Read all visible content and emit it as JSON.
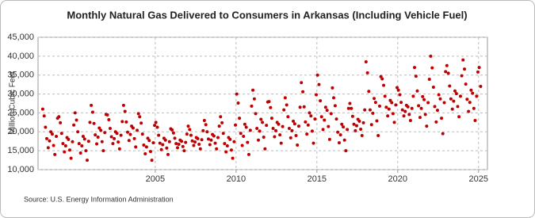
{
  "chart_data": {
    "type": "scatter",
    "title": "Monthly Natural Gas Delivered to Consumers in Arkansas (Including Vehicle Fuel)",
    "ylabel": "Million Cubic Feet",
    "source": "Source: U.S. Energy Information Administration",
    "color": "#c00000",
    "grid": true,
    "xlim": [
      1997.75,
      2025.55
    ],
    "xticks": [
      2005,
      2010,
      2015,
      2020,
      2025
    ],
    "ylim": [
      10000,
      45000
    ],
    "yticks": [
      {
        "value": 10000,
        "label": "10,000"
      },
      {
        "value": 15000,
        "label": "15,000"
      },
      {
        "value": 20000,
        "label": "20,000"
      },
      {
        "value": 25000,
        "label": "25,000"
      },
      {
        "value": 30000,
        "label": "30,000"
      },
      {
        "value": 35000,
        "label": "35,000"
      },
      {
        "value": 40000,
        "label": "40,000"
      },
      {
        "value": 45000,
        "label": "45,000"
      }
    ],
    "x": [
      1998.04,
      1998.13,
      1998.21,
      1998.29,
      1998.38,
      1998.46,
      1998.54,
      1998.63,
      1998.71,
      1998.79,
      1998.88,
      1998.96,
      1999.04,
      1999.13,
      1999.21,
      1999.29,
      1999.38,
      1999.46,
      1999.54,
      1999.63,
      1999.71,
      1999.79,
      1999.88,
      1999.96,
      2000.04,
      2000.13,
      2000.21,
      2000.29,
      2000.38,
      2000.46,
      2000.54,
      2000.63,
      2000.71,
      2000.79,
      2000.88,
      2000.96,
      2001.04,
      2001.13,
      2001.21,
      2001.29,
      2001.38,
      2001.46,
      2001.54,
      2001.63,
      2001.71,
      2001.79,
      2001.88,
      2001.96,
      2002.04,
      2002.13,
      2002.21,
      2002.29,
      2002.38,
      2002.46,
      2002.54,
      2002.63,
      2002.71,
      2002.79,
      2002.88,
      2002.96,
      2003.04,
      2003.13,
      2003.21,
      2003.29,
      2003.38,
      2003.46,
      2003.54,
      2003.63,
      2003.71,
      2003.79,
      2003.88,
      2003.96,
      2004.04,
      2004.13,
      2004.21,
      2004.29,
      2004.38,
      2004.46,
      2004.54,
      2004.63,
      2004.71,
      2004.79,
      2004.88,
      2004.96,
      2005.04,
      2005.13,
      2005.21,
      2005.29,
      2005.38,
      2005.46,
      2005.54,
      2005.63,
      2005.71,
      2005.79,
      2005.88,
      2005.96,
      2006.04,
      2006.13,
      2006.21,
      2006.29,
      2006.38,
      2006.46,
      2006.54,
      2006.63,
      2006.71,
      2006.79,
      2006.88,
      2006.96,
      2007.04,
      2007.13,
      2007.21,
      2007.29,
      2007.38,
      2007.46,
      2007.54,
      2007.63,
      2007.71,
      2007.79,
      2007.88,
      2007.96,
      2008.04,
      2008.13,
      2008.21,
      2008.29,
      2008.38,
      2008.46,
      2008.54,
      2008.63,
      2008.71,
      2008.79,
      2008.88,
      2008.96,
      2009.04,
      2009.13,
      2009.21,
      2009.29,
      2009.38,
      2009.46,
      2009.54,
      2009.63,
      2009.71,
      2009.79,
      2009.88,
      2009.96,
      2010.04,
      2010.13,
      2010.21,
      2010.29,
      2010.38,
      2010.46,
      2010.54,
      2010.63,
      2010.71,
      2010.79,
      2010.88,
      2010.96,
      2011.04,
      2011.13,
      2011.21,
      2011.29,
      2011.38,
      2011.46,
      2011.54,
      2011.63,
      2011.71,
      2011.79,
      2011.88,
      2011.96,
      2012.04,
      2012.13,
      2012.21,
      2012.29,
      2012.38,
      2012.46,
      2012.54,
      2012.63,
      2012.71,
      2012.79,
      2012.88,
      2012.96,
      2013.04,
      2013.13,
      2013.21,
      2013.29,
      2013.38,
      2013.46,
      2013.54,
      2013.63,
      2013.71,
      2013.79,
      2013.88,
      2013.96,
      2014.04,
      2014.13,
      2014.21,
      2014.29,
      2014.38,
      2014.46,
      2014.54,
      2014.63,
      2014.71,
      2014.79,
      2014.88,
      2014.96,
      2015.04,
      2015.13,
      2015.21,
      2015.29,
      2015.38,
      2015.46,
      2015.54,
      2015.63,
      2015.71,
      2015.79,
      2015.88,
      2015.96,
      2016.04,
      2016.13,
      2016.21,
      2016.29,
      2016.38,
      2016.46,
      2016.54,
      2016.63,
      2016.71,
      2016.79,
      2016.88,
      2016.96,
      2017.04,
      2017.13,
      2017.21,
      2017.29,
      2017.38,
      2017.46,
      2017.54,
      2017.63,
      2017.71,
      2017.79,
      2017.88,
      2017.96,
      2018.04,
      2018.13,
      2018.21,
      2018.29,
      2018.38,
      2018.46,
      2018.54,
      2018.63,
      2018.71,
      2018.79,
      2018.88,
      2018.96,
      2019.04,
      2019.13,
      2019.21,
      2019.29,
      2019.38,
      2019.46,
      2019.54,
      2019.63,
      2019.71,
      2019.79,
      2019.88,
      2019.96,
      2020.04,
      2020.13,
      2020.21,
      2020.29,
      2020.38,
      2020.46,
      2020.54,
      2020.63,
      2020.71,
      2020.79,
      2020.88,
      2020.96,
      2021.04,
      2021.13,
      2021.21,
      2021.29,
      2021.38,
      2021.46,
      2021.54,
      2021.63,
      2021.71,
      2021.79,
      2021.88,
      2021.96,
      2022.04,
      2022.13,
      2022.21,
      2022.29,
      2022.38,
      2022.46,
      2022.54,
      2022.63,
      2022.71,
      2022.79,
      2022.88,
      2022.96,
      2023.04,
      2023.13,
      2023.21,
      2023.29,
      2023.38,
      2023.46,
      2023.54,
      2023.63,
      2023.71,
      2023.79,
      2023.88,
      2023.96,
      2024.04,
      2024.13,
      2024.21,
      2024.29,
      2024.38,
      2024.46,
      2024.54,
      2024.63,
      2024.71,
      2024.79,
      2024.88,
      2024.96,
      2025.04,
      2025.13
    ],
    "values": [
      26000,
      24200,
      21200,
      18200,
      15800,
      17600,
      20000,
      19400,
      16400,
      14000,
      18800,
      23600,
      24000,
      22400,
      19600,
      16900,
      14700,
      16300,
      18500,
      18000,
      15200,
      13000,
      17400,
      21800,
      25000,
      23100,
      20000,
      16900,
      14400,
      16300,
      18800,
      18100,
      15000,
      12500,
      17500,
      22500,
      27000,
      25200,
      22200,
      19200,
      16800,
      18600,
      21000,
      20400,
      17400,
      15000,
      19800,
      24600,
      24500,
      23200,
      20900,
      18700,
      16900,
      18200,
      20000,
      19600,
      17300,
      15500,
      19100,
      22700,
      27000,
      25400,
      22600,
      19900,
      17700,
      19300,
      21500,
      21000,
      18200,
      16000,
      20400,
      24800,
      24000,
      22300,
      19400,
      16500,
      14200,
      16000,
      18300,
      17700,
      14800,
      12500,
      17100,
      21700,
      22500,
      21200,
      19100,
      17000,
      15300,
      16600,
      18300,
      17800,
      15700,
      14000,
      17400,
      20800,
      20500,
      19700,
      18300,
      16900,
      15800,
      16700,
      17800,
      17500,
      16100,
      15000,
      17200,
      19400,
      21500,
      20600,
      19100,
      17600,
      16400,
      17300,
      18500,
      18200,
      16700,
      15500,
      17900,
      20300,
      23000,
      21900,
      20000,
      18100,
      16600,
      17800,
      19300,
      18900,
      17000,
      15500,
      18500,
      21500,
      24000,
      22400,
      19600,
      16900,
      14700,
      16300,
      18500,
      18000,
      15200,
      13000,
      17400,
      21800,
      30000,
      27600,
      23600,
      19600,
      16400,
      18800,
      22000,
      21200,
      17200,
      14000,
      20400,
      26800,
      31000,
      28700,
      24800,
      20900,
      17800,
      20200,
      23300,
      22500,
      18600,
      15500,
      21700,
      27900,
      28000,
      26400,
      23600,
      20900,
      18700,
      20300,
      22500,
      22000,
      19200,
      17000,
      21400,
      25800,
      29000,
      27100,
      24000,
      20900,
      18400,
      20300,
      22800,
      22100,
      19000,
      16500,
      21500,
      26500,
      33000,
      30600,
      26600,
      22600,
      19400,
      21800,
      25000,
      24200,
      20200,
      17000,
      23400,
      29800,
      35000,
      32500,
      28200,
      24000,
      20600,
      23100,
      26500,
      25700,
      21400,
      18000,
      24800,
      31600,
      29000,
      26900,
      23400,
      19900,
      17100,
      19200,
      22000,
      21300,
      17800,
      15000,
      20600,
      26200,
      27500,
      26200,
      24100,
      22000,
      20300,
      21600,
      23300,
      22800,
      20700,
      19000,
      22400,
      25800,
      38500,
      35600,
      30700,
      25800,
      21900,
      24900,
      28800,
      27800,
      22900,
      19000,
      26800,
      34600,
      34000,
      32300,
      29400,
      26500,
      24200,
      26000,
      28300,
      27700,
      24800,
      22500,
      27100,
      31700,
      31000,
      29800,
      27800,
      25800,
      24200,
      25400,
      27000,
      26600,
      24600,
      23000,
      26200,
      29400,
      37000,
      34700,
      30800,
      26900,
      23800,
      26200,
      29300,
      28500,
      24600,
      21500,
      27700,
      33900,
      40000,
      36900,
      31800,
      26700,
      22600,
      25700,
      29800,
      28700,
      23600,
      19500,
      27700,
      35900,
      37500,
      35500,
      32100,
      28700,
      26000,
      28100,
      30800,
      30100,
      26700,
      24000,
      29400,
      34800,
      39000,
      36600,
      32600,
      28600,
      25400,
      27800,
      31000,
      30200,
      26200,
      23000,
      29400,
      35800,
      37000,
      32000
    ]
  }
}
